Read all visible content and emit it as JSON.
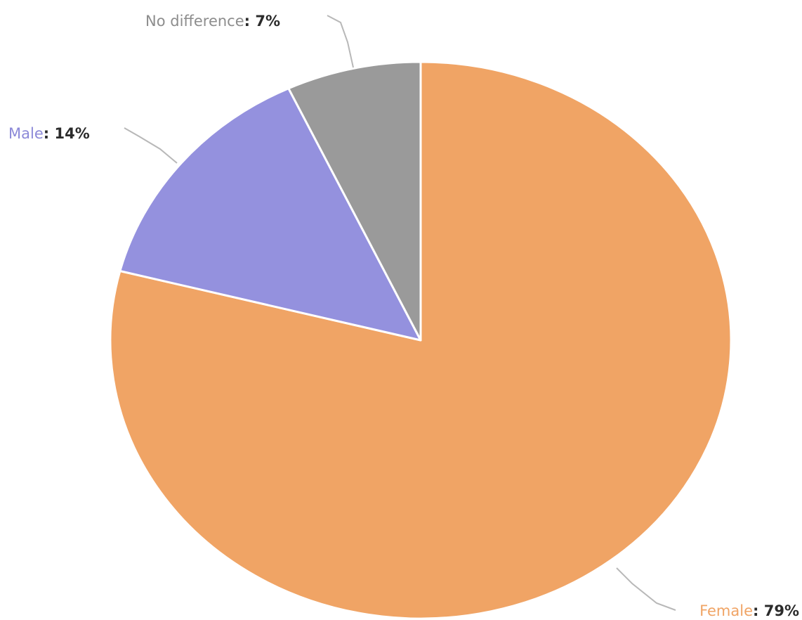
{
  "chart_data": {
    "type": "pie",
    "slices": [
      {
        "name": "Female",
        "value": 79,
        "value_label": "79%",
        "color": "#f0a465"
      },
      {
        "name": "Male",
        "value": 14,
        "value_label": "14%",
        "color": "#9491de"
      },
      {
        "name": "No difference",
        "value": 7,
        "value_label": "7%",
        "color": "#9a9a9a"
      }
    ],
    "start_angle": "12 o'clock",
    "direction": "clockwise",
    "labels": "outside with leader lines",
    "legend": "none"
  }
}
